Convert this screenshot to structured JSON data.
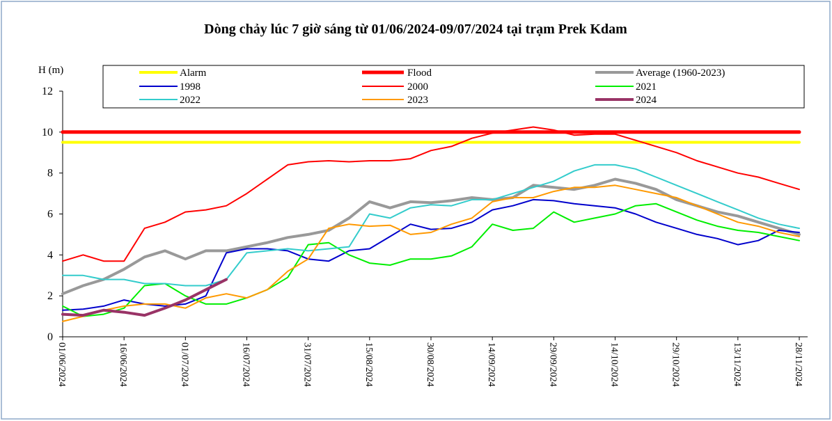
{
  "chart_data": {
    "type": "line",
    "title": "Dòng chảy lúc 7 giờ sáng từ 01/06/2024-09/07/2024 tại trạm Prek Kdam",
    "y_label": "H (m)",
    "x": [
      "01/06/2024",
      "06/06/2024",
      "11/06/2024",
      "16/06/2024",
      "21/06/2024",
      "26/06/2024",
      "01/07/2024",
      "06/07/2024",
      "11/07/2024",
      "16/07/2024",
      "21/07/2024",
      "26/07/2024",
      "31/07/2024",
      "05/08/2024",
      "10/08/2024",
      "15/08/2024",
      "20/08/2024",
      "25/08/2024",
      "30/08/2024",
      "04/09/2024",
      "09/09/2024",
      "14/09/2024",
      "19/09/2024",
      "24/09/2024",
      "29/09/2024",
      "04/10/2024",
      "09/10/2024",
      "14/10/2024",
      "19/10/2024",
      "24/10/2024",
      "29/10/2024",
      "03/11/2024",
      "08/11/2024",
      "13/11/2024",
      "18/11/2024",
      "23/11/2024",
      "28/11/2024"
    ],
    "xticks": [
      "01/06/2024",
      "16/06/2024",
      "01/07/2024",
      "16/07/2024",
      "31/07/2024",
      "15/08/2024",
      "30/08/2024",
      "14/09/2024",
      "29/09/2024",
      "14/10/2024",
      "29/10/2024",
      "13/11/2024",
      "28/11/2024"
    ],
    "ylim": [
      0,
      12
    ],
    "yticks": [
      0,
      2,
      4,
      6,
      8,
      10,
      12
    ],
    "grid": false,
    "series": [
      {
        "name": "Alarm",
        "color": "#ffff00",
        "line_width": 4,
        "values": [
          9.5,
          9.5,
          9.5,
          9.5,
          9.5,
          9.5,
          9.5,
          9.5,
          9.5,
          9.5,
          9.5,
          9.5,
          9.5,
          9.5,
          9.5,
          9.5,
          9.5,
          9.5,
          9.5,
          9.5,
          9.5,
          9.5,
          9.5,
          9.5,
          9.5,
          9.5,
          9.5,
          9.5,
          9.5,
          9.5,
          9.5,
          9.5,
          9.5,
          9.5,
          9.5,
          9.5,
          9.5
        ]
      },
      {
        "name": "Flood",
        "color": "#ff0000",
        "line_width": 5,
        "values": [
          10,
          10,
          10,
          10,
          10,
          10,
          10,
          10,
          10,
          10,
          10,
          10,
          10,
          10,
          10,
          10,
          10,
          10,
          10,
          10,
          10,
          10,
          10,
          10,
          10,
          10,
          10,
          10,
          10,
          10,
          10,
          10,
          10,
          10,
          10,
          10,
          10
        ]
      },
      {
        "name": "Average (1960-2023)",
        "color": "#999999",
        "line_width": 4,
        "values": [
          2.1,
          2.5,
          2.8,
          3.3,
          3.9,
          4.2,
          3.8,
          4.2,
          4.2,
          4.4,
          4.6,
          4.85,
          5.0,
          5.2,
          5.8,
          6.6,
          6.3,
          6.6,
          6.55,
          6.65,
          6.8,
          6.7,
          6.8,
          7.4,
          7.3,
          7.2,
          7.4,
          7.7,
          7.5,
          7.2,
          6.7,
          6.4,
          6.1,
          5.9,
          5.6,
          5.3,
          5.0
        ]
      },
      {
        "name": "1998",
        "color": "#0000cc",
        "line_width": 2,
        "values": [
          1.3,
          1.35,
          1.5,
          1.8,
          1.6,
          1.5,
          1.6,
          2.0,
          4.1,
          4.3,
          4.3,
          4.2,
          3.8,
          3.7,
          4.2,
          4.3,
          4.9,
          5.5,
          5.25,
          5.3,
          5.6,
          6.2,
          6.4,
          6.7,
          6.65,
          6.5,
          6.4,
          6.3,
          6.0,
          5.6,
          5.3,
          5.0,
          4.8,
          4.5,
          4.7,
          5.2,
          5.1
        ]
      },
      {
        "name": "2000",
        "color": "#ff0000",
        "line_width": 2,
        "values": [
          3.7,
          4.0,
          3.7,
          3.7,
          5.3,
          5.6,
          6.1,
          6.2,
          6.4,
          7.0,
          7.7,
          8.4,
          8.55,
          8.6,
          8.55,
          8.6,
          8.6,
          8.7,
          9.1,
          9.3,
          9.7,
          9.95,
          10.1,
          10.25,
          10.1,
          9.85,
          9.9,
          9.9,
          9.6,
          9.3,
          9.0,
          8.6,
          8.3,
          8.0,
          7.8,
          7.5,
          7.2
        ]
      },
      {
        "name": "2021",
        "color": "#00ee00",
        "line_width": 2,
        "values": [
          1.5,
          1.0,
          1.1,
          1.4,
          2.5,
          2.6,
          2.0,
          1.6,
          1.6,
          1.9,
          2.3,
          2.9,
          4.5,
          4.6,
          4.0,
          3.6,
          3.5,
          3.8,
          3.8,
          3.95,
          4.4,
          5.5,
          5.2,
          5.3,
          6.1,
          5.6,
          5.8,
          6.0,
          6.4,
          6.5,
          6.1,
          5.7,
          5.4,
          5.2,
          5.1,
          4.9,
          4.7
        ]
      },
      {
        "name": "2022",
        "color": "#33cccc",
        "line_width": 2,
        "values": [
          3.0,
          3.0,
          2.8,
          2.8,
          2.6,
          2.6,
          2.5,
          2.5,
          2.8,
          4.1,
          4.2,
          4.3,
          4.2,
          4.3,
          4.4,
          6.0,
          5.8,
          6.3,
          6.45,
          6.4,
          6.7,
          6.7,
          7.0,
          7.3,
          7.6,
          8.1,
          8.4,
          8.4,
          8.2,
          7.8,
          7.4,
          7.0,
          6.6,
          6.2,
          5.8,
          5.5,
          5.3
        ]
      },
      {
        "name": "2023",
        "color": "#ff9900",
        "line_width": 2,
        "values": [
          0.75,
          1.0,
          1.3,
          1.5,
          1.6,
          1.6,
          1.4,
          1.9,
          2.1,
          1.9,
          2.3,
          3.2,
          3.8,
          5.3,
          5.5,
          5.4,
          5.45,
          5.0,
          5.1,
          5.5,
          5.8,
          6.6,
          6.8,
          6.8,
          7.1,
          7.3,
          7.3,
          7.4,
          7.2,
          7.0,
          6.8,
          6.4,
          6.0,
          5.6,
          5.4,
          5.1,
          4.9
        ]
      },
      {
        "name": "2024",
        "color": "#993366",
        "line_width": 4,
        "values": [
          1.1,
          1.05,
          1.3,
          1.2,
          1.05,
          1.4,
          1.8,
          2.3,
          2.8,
          null,
          null,
          null,
          null,
          null,
          null,
          null,
          null,
          null,
          null,
          null,
          null,
          null,
          null,
          null,
          null,
          null,
          null,
          null,
          null,
          null,
          null,
          null,
          null,
          null,
          null,
          null,
          null
        ]
      }
    ]
  }
}
